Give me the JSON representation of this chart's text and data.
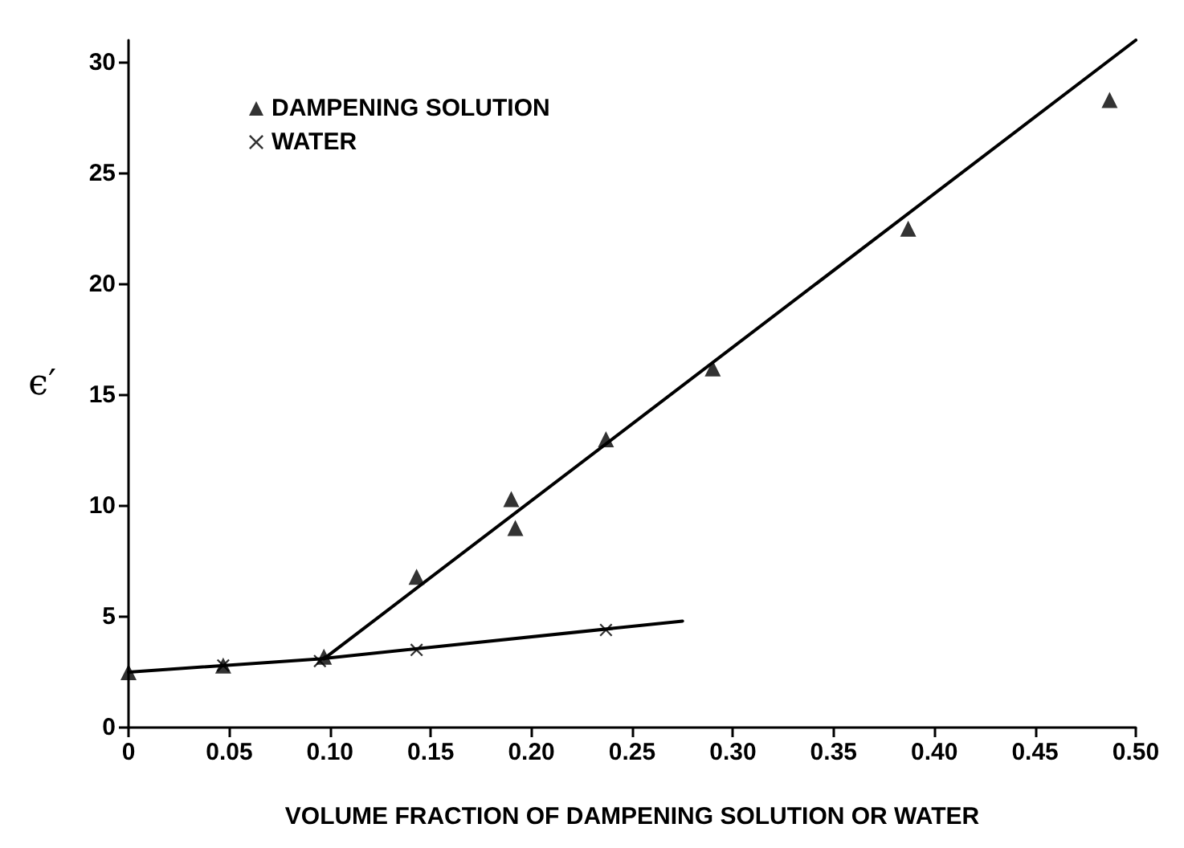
{
  "chart_data": {
    "type": "scatter",
    "xlabel": "VOLUME FRACTION OF DAMPENING SOLUTION OR WATER",
    "ylabel": "ϵ′",
    "xlim": [
      0,
      0.5
    ],
    "xticks": [
      {
        "value": 0,
        "label": "0"
      },
      {
        "value": 0.05,
        "label": "0.05"
      },
      {
        "value": 0.1,
        "label": "0.10"
      },
      {
        "value": 0.15,
        "label": "0.15"
      },
      {
        "value": 0.2,
        "label": "0.20"
      },
      {
        "value": 0.25,
        "label": "0.25"
      },
      {
        "value": 0.3,
        "label": "0.30"
      },
      {
        "value": 0.35,
        "label": "0.35"
      },
      {
        "value": 0.4,
        "label": "0.40"
      },
      {
        "value": 0.45,
        "label": "0.45"
      },
      {
        "value": 0.5,
        "label": "0.50"
      }
    ],
    "ylim": [
      0,
      31
    ],
    "yticks": [
      0,
      5,
      10,
      15,
      20,
      25,
      30
    ],
    "grid": false,
    "legend": "top left",
    "series": [
      {
        "name": "DAMPENING SOLUTION",
        "color": "#000000",
        "marker": "triangle",
        "x": [
          0,
          0.047,
          0.097,
          0.143,
          0.19,
          0.192,
          0.237,
          0.29,
          0.387,
          0.487
        ],
        "values": [
          2.5,
          2.8,
          3.2,
          6.8,
          10.3,
          9.0,
          13.0,
          16.2,
          22.5,
          28.3
        ]
      },
      {
        "name": "WATER",
        "color": "#000000",
        "marker": "cross",
        "x": [
          0.047,
          0.095,
          0.143,
          0.237
        ],
        "values": [
          2.8,
          3.0,
          3.5,
          4.4
        ]
      },
      {
        "type": "line",
        "color": "#000000",
        "marker": "none",
        "x": [
          0.097,
          0.5
        ],
        "values": [
          3.1,
          31.0
        ]
      },
      {
        "type": "line",
        "color": "#000000",
        "marker": "none",
        "x": [
          0,
          0.095,
          0.275
        ],
        "values": [
          2.5,
          3.1,
          4.8
        ]
      }
    ]
  }
}
